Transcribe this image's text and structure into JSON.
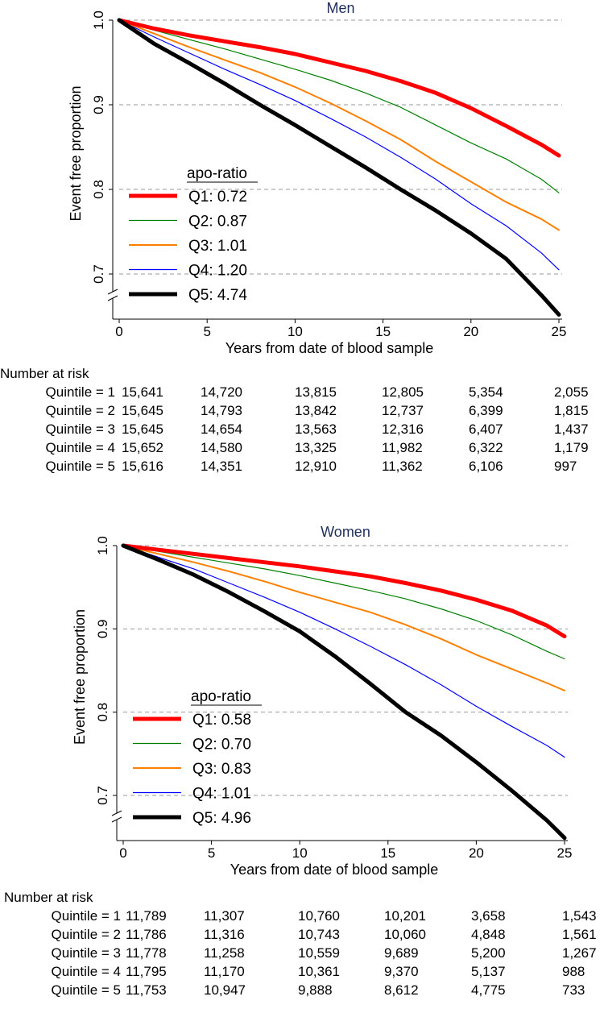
{
  "chart_data": [
    {
      "type": "line",
      "title": "Men",
      "xlabel": "Years from date of blood sample",
      "ylabel": "Event free proportion",
      "xlim": [
        0,
        25
      ],
      "ylim": [
        0.65,
        1.0
      ],
      "xticks": [
        "0",
        "5",
        "10",
        "15",
        "20",
        "25"
      ],
      "yticks": [
        "0.7",
        "0.8",
        "0.9",
        "1.0"
      ],
      "grid": "dashed horizontal at y ticks",
      "legend_title": "apo-ratio",
      "legend_position": "lower-left",
      "series": [
        {
          "name": "Q1: 0.72",
          "color": "#ff0000",
          "x": [
            0,
            2,
            4,
            6,
            8,
            10,
            12,
            14,
            16,
            18,
            20,
            22,
            24,
            25
          ],
          "values": [
            1.0,
            0.99,
            0.982,
            0.975,
            0.968,
            0.96,
            0.95,
            0.94,
            0.928,
            0.914,
            0.896,
            0.875,
            0.853,
            0.84
          ]
        },
        {
          "name": "Q2: 0.87",
          "color": "#008000",
          "x": [
            0,
            2,
            4,
            6,
            8,
            10,
            12,
            14,
            16,
            18,
            20,
            22,
            24,
            25
          ],
          "values": [
            1.0,
            0.988,
            0.977,
            0.966,
            0.954,
            0.942,
            0.929,
            0.914,
            0.897,
            0.876,
            0.855,
            0.836,
            0.812,
            0.796
          ]
        },
        {
          "name": "Q3: 1.01",
          "color": "#ff8000",
          "x": [
            0,
            2,
            4,
            6,
            8,
            10,
            12,
            14,
            16,
            18,
            20,
            22,
            24,
            25
          ],
          "values": [
            1.0,
            0.984,
            0.968,
            0.953,
            0.938,
            0.921,
            0.902,
            0.881,
            0.859,
            0.833,
            0.809,
            0.785,
            0.765,
            0.752
          ]
        },
        {
          "name": "Q4: 1.20",
          "color": "#0000ff",
          "x": [
            0,
            2,
            4,
            6,
            8,
            10,
            12,
            14,
            16,
            18,
            20,
            22,
            24,
            25
          ],
          "values": [
            1.0,
            0.98,
            0.961,
            0.942,
            0.924,
            0.905,
            0.884,
            0.862,
            0.838,
            0.812,
            0.783,
            0.757,
            0.725,
            0.705
          ]
        },
        {
          "name": "Q5: 4.74",
          "color": "#000000",
          "x": [
            0,
            2,
            4,
            6,
            8,
            10,
            12,
            14,
            16,
            18,
            20,
            22,
            24,
            25
          ],
          "values": [
            1.0,
            0.972,
            0.949,
            0.925,
            0.9,
            0.876,
            0.851,
            0.826,
            0.8,
            0.775,
            0.748,
            0.718,
            0.675,
            0.652
          ]
        }
      ]
    },
    {
      "type": "line",
      "title": "Women",
      "xlabel": "Years from date of blood sample",
      "ylabel": "Event free proportion",
      "xlim": [
        0,
        25
      ],
      "ylim": [
        0.65,
        1.0
      ],
      "xticks": [
        "0",
        "5",
        "10",
        "15",
        "20",
        "25"
      ],
      "yticks": [
        "0.7",
        "0.8",
        "0.9",
        "1.0"
      ],
      "grid": "dashed horizontal at y ticks",
      "legend_title": "apo-ratio",
      "legend_position": "lower-left",
      "series": [
        {
          "name": "Q1: 0.58",
          "color": "#ff0000",
          "x": [
            0,
            2,
            4,
            6,
            8,
            10,
            12,
            14,
            16,
            18,
            20,
            22,
            24,
            25
          ],
          "values": [
            1.0,
            0.995,
            0.99,
            0.985,
            0.98,
            0.975,
            0.969,
            0.963,
            0.955,
            0.946,
            0.935,
            0.922,
            0.904,
            0.891
          ]
        },
        {
          "name": "Q2: 0.70",
          "color": "#008000",
          "x": [
            0,
            2,
            4,
            6,
            8,
            10,
            12,
            14,
            16,
            18,
            20,
            22,
            24,
            25
          ],
          "values": [
            1.0,
            0.993,
            0.986,
            0.979,
            0.972,
            0.964,
            0.955,
            0.946,
            0.936,
            0.924,
            0.91,
            0.893,
            0.873,
            0.864
          ]
        },
        {
          "name": "Q3: 0.83",
          "color": "#ff8000",
          "x": [
            0,
            2,
            4,
            6,
            8,
            10,
            12,
            14,
            16,
            18,
            20,
            22,
            24,
            25
          ],
          "values": [
            1.0,
            0.99,
            0.98,
            0.969,
            0.957,
            0.944,
            0.932,
            0.92,
            0.905,
            0.888,
            0.869,
            0.852,
            0.835,
            0.826
          ]
        },
        {
          "name": "Q4: 1.01",
          "color": "#0000ff",
          "x": [
            0,
            2,
            4,
            6,
            8,
            10,
            12,
            14,
            16,
            18,
            20,
            22,
            24,
            25
          ],
          "values": [
            1.0,
            0.986,
            0.972,
            0.955,
            0.938,
            0.92,
            0.9,
            0.879,
            0.857,
            0.833,
            0.807,
            0.783,
            0.76,
            0.746
          ]
        },
        {
          "name": "Q5: 4.96",
          "color": "#000000",
          "x": [
            0,
            2,
            4,
            6,
            8,
            10,
            12,
            14,
            16,
            18,
            20,
            22,
            24,
            25
          ],
          "values": [
            1.0,
            0.983,
            0.965,
            0.944,
            0.921,
            0.897,
            0.867,
            0.834,
            0.8,
            0.772,
            0.74,
            0.706,
            0.67,
            0.649
          ]
        }
      ]
    }
  ],
  "risk_tables": [
    {
      "title": "Number at risk",
      "rows": [
        {
          "label": "Quintile = 1",
          "values": [
            "15,641",
            "14,720",
            "13,815",
            "12,805",
            "5,354",
            "2,055"
          ]
        },
        {
          "label": "Quintile = 2",
          "values": [
            "15,645",
            "14,793",
            "13,842",
            "12,737",
            "6,399",
            "1,815"
          ]
        },
        {
          "label": "Quintile = 3",
          "values": [
            "15,645",
            "14,654",
            "13,563",
            "12,316",
            "6,407",
            "1,437"
          ]
        },
        {
          "label": "Quintile = 4",
          "values": [
            "15,652",
            "14,580",
            "13,325",
            "11,982",
            "6,322",
            "1,179"
          ]
        },
        {
          "label": "Quintile = 5",
          "values": [
            "15,616",
            "14,351",
            "12,910",
            "11,362",
            "6,106",
            "997"
          ]
        }
      ]
    },
    {
      "title": "Number at risk",
      "rows": [
        {
          "label": "Quintile = 1",
          "values": [
            "11,789",
            "11,307",
            "10,760",
            "10,201",
            "3,658",
            "1,543"
          ]
        },
        {
          "label": "Quintile = 2",
          "values": [
            "11,786",
            "11,316",
            "10,743",
            "10,060",
            "4,848",
            "1,561"
          ]
        },
        {
          "label": "Quintile = 3",
          "values": [
            "11,778",
            "11,258",
            "10,559",
            "9,689",
            "5,200",
            "1,267"
          ]
        },
        {
          "label": "Quintile = 4",
          "values": [
            "11,795",
            "11,170",
            "10,361",
            "9,370",
            "5,137",
            "988"
          ]
        },
        {
          "label": "Quintile = 5",
          "values": [
            "11,753",
            "10,947",
            "9,888",
            "8,612",
            "4,775",
            "733"
          ]
        }
      ]
    }
  ]
}
